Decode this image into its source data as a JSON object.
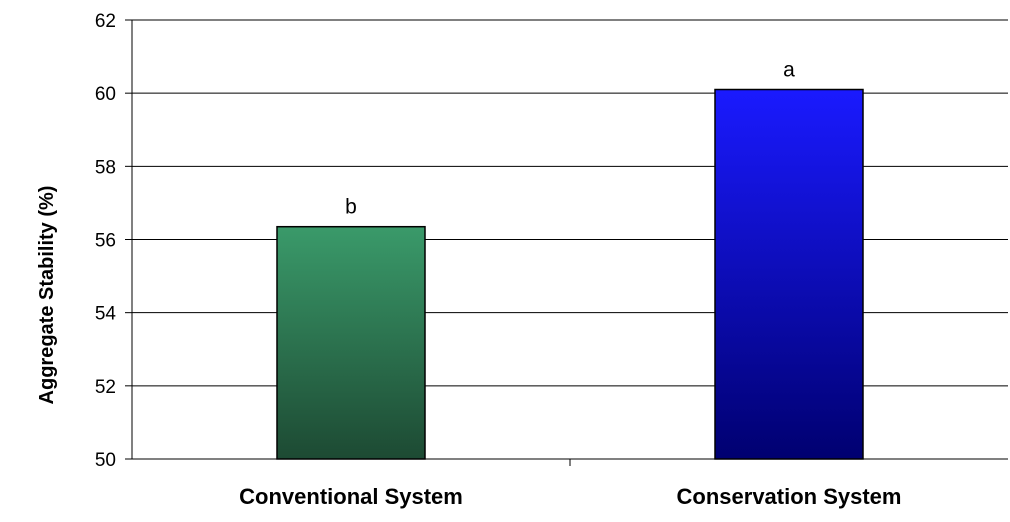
{
  "chart_data": {
    "type": "bar",
    "title": "",
    "xlabel": "",
    "ylabel": "Aggregate Stability (%)",
    "ylim": [
      50,
      62
    ],
    "yticks": [
      50,
      52,
      54,
      56,
      58,
      60,
      62
    ],
    "grid": true,
    "categories": [
      "Conventional System",
      "Conservation System"
    ],
    "values": [
      56.35,
      60.1
    ],
    "annotations": [
      "b",
      "a"
    ],
    "colors": {
      "Conventional System": {
        "top": "#3A9A6A",
        "bottom": "#1D4A33"
      },
      "Conservation System": {
        "top": "#1A1AFF",
        "bottom": "#000070"
      }
    }
  }
}
